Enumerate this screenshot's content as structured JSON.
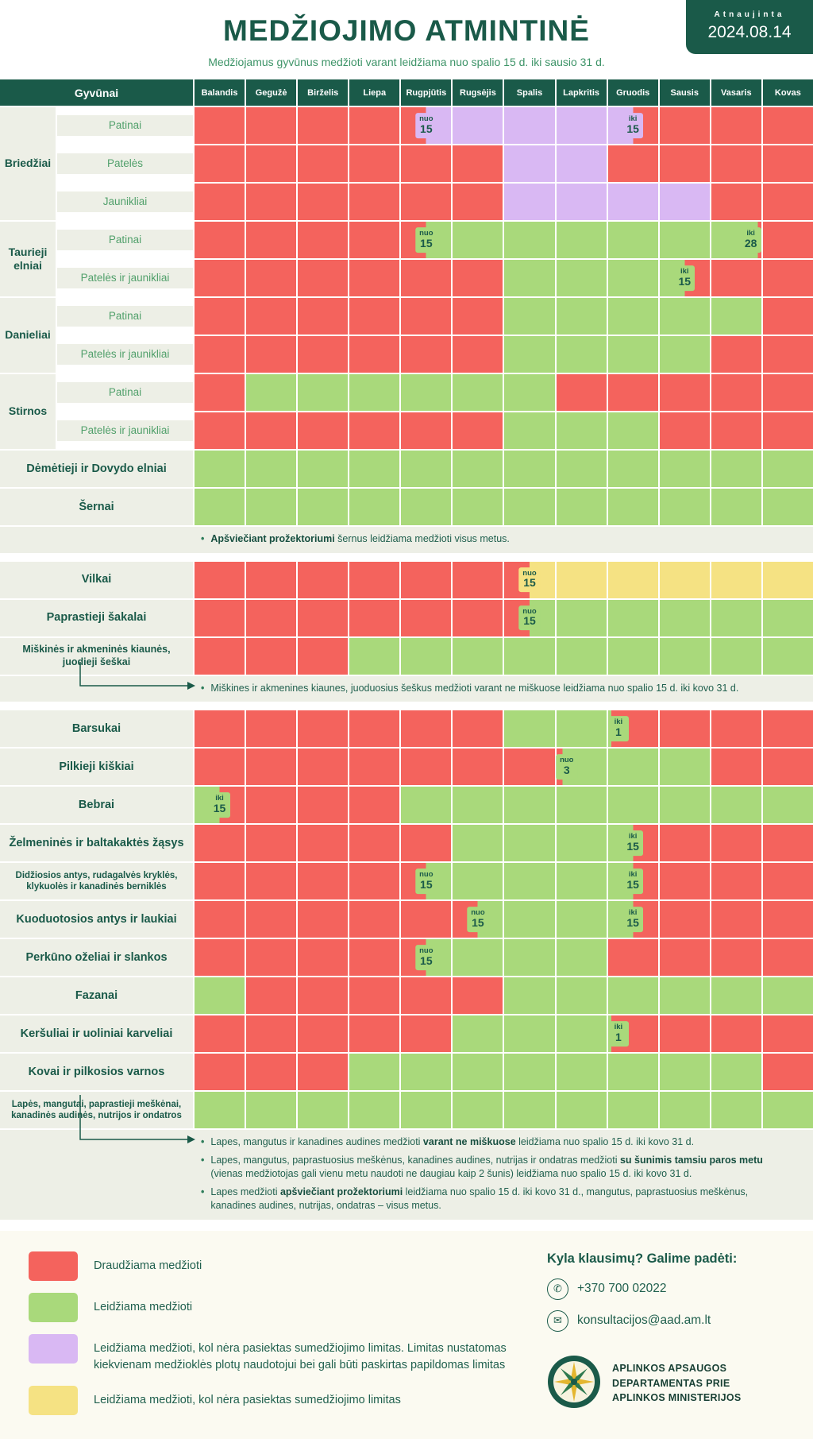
{
  "palette": {
    "R": "#f4635d",
    "G": "#a9d97b",
    "P": "#d9b8f3",
    "Y": "#f5e283",
    "dark_green": "#1a5a49"
  },
  "header": {
    "title": "MEDŽIOJIMO ATMINTINĖ",
    "updated_label": "Atnaujinta",
    "updated_date": "2024.08.14",
    "subtitle": "Medžiojamus gyvūnus medžioti varant leidžiama nuo spalio 15 d. iki sausio 31 d."
  },
  "table": {
    "corner_label": "Gyvūnai",
    "months": [
      "Balandis",
      "Gegužė",
      "Birželis",
      "Liepa",
      "Rugpjūtis",
      "Rugsėjis",
      "Spalis",
      "Lapkritis",
      "Gruodis",
      "Sausis",
      "Vasaris",
      "Kovas"
    ],
    "sections": [
      {
        "blocks": [
          {
            "label": "Briedžiai",
            "rows": [
              {
                "label": "Patinai",
                "cells": [
                  "R",
                  "R",
                  "R",
                  "R",
                  {
                    "a": "R",
                    "b": "P",
                    "t": "nuo",
                    "n": "15",
                    "f": 0.5
                  },
                  "P",
                  "P",
                  "P",
                  {
                    "a": "P",
                    "b": "R",
                    "t": "iki",
                    "n": "15",
                    "f": 0.5
                  },
                  "R",
                  "R",
                  "R"
                ]
              },
              {
                "label": "Patelės",
                "cells": [
                  "R",
                  "R",
                  "R",
                  "R",
                  "R",
                  "R",
                  "P",
                  "P",
                  "R",
                  "R",
                  "R",
                  "R"
                ]
              },
              {
                "label": "Jaunikliai",
                "cells": [
                  "R",
                  "R",
                  "R",
                  "R",
                  "R",
                  "R",
                  "P",
                  "P",
                  "P",
                  "P",
                  "R",
                  "R"
                ]
              }
            ]
          },
          {
            "label": "Taurieji elniai",
            "rows": [
              {
                "label": "Patinai",
                "cells": [
                  "R",
                  "R",
                  "R",
                  "R",
                  {
                    "a": "R",
                    "b": "G",
                    "t": "nuo",
                    "n": "15",
                    "f": 0.5
                  },
                  "G",
                  "G",
                  "G",
                  "G",
                  "G",
                  {
                    "a": "G",
                    "b": "R",
                    "t": "iki",
                    "n": "28",
                    "f": 0.93
                  },
                  "R"
                ]
              },
              {
                "label": "Patelės ir jaunikliai",
                "cells": [
                  "R",
                  "R",
                  "R",
                  "R",
                  "R",
                  "R",
                  "G",
                  "G",
                  "G",
                  {
                    "a": "G",
                    "b": "R",
                    "t": "iki",
                    "n": "15",
                    "f": 0.5
                  },
                  "R",
                  "R"
                ]
              }
            ]
          },
          {
            "label": "Danieliai",
            "rows": [
              {
                "label": "Patinai",
                "cells": [
                  "R",
                  "R",
                  "R",
                  "R",
                  "R",
                  "R",
                  "G",
                  "G",
                  "G",
                  "G",
                  "G",
                  "R"
                ]
              },
              {
                "label": "Patelės ir jaunikliai",
                "cells": [
                  "R",
                  "R",
                  "R",
                  "R",
                  "R",
                  "R",
                  "G",
                  "G",
                  "G",
                  "G",
                  "R",
                  "R"
                ]
              }
            ]
          },
          {
            "label": "Stirnos",
            "rows": [
              {
                "label": "Patinai",
                "cells": [
                  "R",
                  "G",
                  "G",
                  "G",
                  "G",
                  "G",
                  "G",
                  "R",
                  "R",
                  "R",
                  "R",
                  "R"
                ]
              },
              {
                "label": "Patelės ir jaunikliai",
                "cells": [
                  "R",
                  "R",
                  "R",
                  "R",
                  "R",
                  "R",
                  "G",
                  "G",
                  "G",
                  "R",
                  "R",
                  "R"
                ]
              }
            ]
          },
          {
            "rows": [
              {
                "label": "Dėmėtieji ir Dovydo elniai",
                "cells": [
                  "G",
                  "G",
                  "G",
                  "G",
                  "G",
                  "G",
                  "G",
                  "G",
                  "G",
                  "G",
                  "G",
                  "G"
                ]
              }
            ]
          },
          {
            "rows": [
              {
                "label": "Šernai",
                "cells": [
                  "G",
                  "G",
                  "G",
                  "G",
                  "G",
                  "G",
                  "G",
                  "G",
                  "G",
                  "G",
                  "G",
                  "G"
                ]
              }
            ],
            "notes": [
              "**Apšviečiant prožektoriumi** šernus leidžiama medžioti visus metus."
            ]
          }
        ]
      },
      {
        "blocks": [
          {
            "rows": [
              {
                "label": "Vilkai",
                "cells": [
                  "R",
                  "R",
                  "R",
                  "R",
                  "R",
                  "R",
                  {
                    "a": "R",
                    "b": "Y",
                    "t": "nuo",
                    "n": "15",
                    "f": 0.5
                  },
                  "Y",
                  "Y",
                  "Y",
                  "Y",
                  "Y"
                ]
              }
            ]
          },
          {
            "rows": [
              {
                "label": "Paprastieji šakalai",
                "cells": [
                  "R",
                  "R",
                  "R",
                  "R",
                  "R",
                  "R",
                  {
                    "a": "R",
                    "b": "G",
                    "t": "nuo",
                    "n": "15",
                    "f": 0.5
                  },
                  "G",
                  "G",
                  "G",
                  "G",
                  "G"
                ]
              }
            ]
          },
          {
            "rows": [
              {
                "label": "Miškinės ir akmeninės kiaunės, juodieji šeškai",
                "cells": [
                  "R",
                  "R",
                  "R",
                  "G",
                  "G",
                  "G",
                  "G",
                  "G",
                  "G",
                  "G",
                  "G",
                  "G"
                ]
              }
            ],
            "notes": [
              "Miškines ir akmenines kiaunes, juoduosius šeškus medžioti varant ne miškuose leidžiama nuo spalio 15 d. iki kovo 31 d."
            ],
            "arrow": "short"
          }
        ]
      },
      {
        "blocks": [
          {
            "rows": [
              {
                "label": "Barsukai",
                "cells": [
                  "R",
                  "R",
                  "R",
                  "R",
                  "R",
                  "R",
                  "G",
                  "G",
                  {
                    "a": "G",
                    "b": "R",
                    "t": "iki",
                    "n": "1",
                    "f": 0.06
                  },
                  "R",
                  "R",
                  "R"
                ]
              }
            ]
          },
          {
            "rows": [
              {
                "label": "Pilkieji kiškiai",
                "cells": [
                  "R",
                  "R",
                  "R",
                  "R",
                  "R",
                  "R",
                  "R",
                  {
                    "a": "R",
                    "b": "G",
                    "t": "nuo",
                    "n": "3",
                    "f": 0.12
                  },
                  "G",
                  "G",
                  "R",
                  "R"
                ]
              }
            ]
          },
          {
            "rows": [
              {
                "label": "Bebrai",
                "cells": [
                  {
                    "a": "G",
                    "b": "R",
                    "t": "iki",
                    "n": "15",
                    "f": 0.5
                  },
                  "R",
                  "R",
                  "R",
                  "G",
                  "G",
                  "G",
                  "G",
                  "G",
                  "G",
                  "G",
                  "G"
                ]
              }
            ]
          },
          {
            "rows": [
              {
                "label": "Želmeninės ir baltakaktės žąsys",
                "cells": [
                  "R",
                  "R",
                  "R",
                  "R",
                  "R",
                  "G",
                  "G",
                  "G",
                  {
                    "a": "G",
                    "b": "R",
                    "t": "iki",
                    "n": "15",
                    "f": 0.5
                  },
                  "R",
                  "R",
                  "R"
                ]
              }
            ]
          },
          {
            "rows": [
              {
                "label": "Didžiosios antys, rudagalvės kryklės, klykuolės ir kanadinės berniklės",
                "cells": [
                  "R",
                  "R",
                  "R",
                  "R",
                  {
                    "a": "R",
                    "b": "G",
                    "t": "nuo",
                    "n": "15",
                    "f": 0.5
                  },
                  "G",
                  "G",
                  "G",
                  {
                    "a": "G",
                    "b": "R",
                    "t": "iki",
                    "n": "15",
                    "f": 0.5
                  },
                  "R",
                  "R",
                  "R"
                ]
              }
            ]
          },
          {
            "rows": [
              {
                "label": "Kuoduotosios antys ir laukiai",
                "cells": [
                  "R",
                  "R",
                  "R",
                  "R",
                  "R",
                  {
                    "a": "R",
                    "b": "G",
                    "t": "nuo",
                    "n": "15",
                    "f": 0.5
                  },
                  "G",
                  "G",
                  {
                    "a": "G",
                    "b": "R",
                    "t": "iki",
                    "n": "15",
                    "f": 0.5
                  },
                  "R",
                  "R",
                  "R"
                ]
              }
            ]
          },
          {
            "rows": [
              {
                "label": "Perkūno oželiai ir slankos",
                "cells": [
                  "R",
                  "R",
                  "R",
                  "R",
                  {
                    "a": "R",
                    "b": "G",
                    "t": "nuo",
                    "n": "15",
                    "f": 0.5
                  },
                  "G",
                  "G",
                  "G",
                  "R",
                  "R",
                  "R",
                  "R"
                ]
              }
            ]
          },
          {
            "rows": [
              {
                "label": "Fazanai",
                "cells": [
                  "G",
                  "R",
                  "R",
                  "R",
                  "R",
                  "R",
                  "G",
                  "G",
                  "G",
                  "G",
                  "G",
                  "G"
                ]
              }
            ]
          },
          {
            "rows": [
              {
                "label": "Keršuliai ir uoliniai karveliai",
                "cells": [
                  "R",
                  "R",
                  "R",
                  "R",
                  "R",
                  "G",
                  "G",
                  "G",
                  {
                    "a": "G",
                    "b": "R",
                    "t": "iki",
                    "n": "1",
                    "f": 0.06
                  },
                  "R",
                  "R",
                  "R"
                ]
              }
            ]
          },
          {
            "rows": [
              {
                "label": "Kovai ir pilkosios varnos",
                "cells": [
                  "R",
                  "R",
                  "R",
                  "G",
                  "G",
                  "G",
                  "G",
                  "G",
                  "G",
                  "G",
                  "G",
                  "R"
                ]
              }
            ]
          },
          {
            "rows": [
              {
                "label": "Lapės, mangutai, paprastieji meškėnai, kanadinės audinės, nutrijos ir ondatros",
                "cells": [
                  "G",
                  "G",
                  "G",
                  "G",
                  "G",
                  "G",
                  "G",
                  "G",
                  "G",
                  "G",
                  "G",
                  "G"
                ]
              }
            ],
            "notes": [
              "Lapes, mangutus ir kanadines audines medžioti **varant ne miškuose** leidžiama nuo spalio 15 d. iki kovo 31 d.",
              "Lapes, mangutus, paprastuosius meškėnus, kanadines audines, nutrijas ir ondatras medžioti **su šunimis tamsiu paros metu** (vienas medžiotojas gali vienu metu naudoti ne daugiau kaip 2 šunis) leidžiama nuo spalio 15 d. iki kovo 31 d.",
              "Lapes medžioti **apšviečiant prožektoriumi** leidžiama nuo spalio 15 d. iki kovo 31 d., mangutus, paprastuosius meškėnus, kanadines audines, nutrijas, ondatras – visus metus."
            ],
            "arrow": "tall"
          }
        ]
      }
    ]
  },
  "legend": {
    "items": [
      {
        "color": "R",
        "text": "Draudžiama medžioti"
      },
      {
        "color": "G",
        "text": "Leidžiama medžioti"
      },
      {
        "color": "P",
        "text": "Leidžiama medžioti, kol nėra pasiektas sumedžiojimo limitas. Limitas nustatomas kiekvienam medžioklės plotų naudotojui bei gali būti paskirtas papildomas limitas"
      },
      {
        "color": "Y",
        "text": "Leidžiama medžioti, kol nėra pasiektas sumedžiojimo limitas"
      }
    ]
  },
  "contact": {
    "heading": "Kyla klausimų? Galime padėti:",
    "phone": "+370 700 02022",
    "email": "konsultacijos@aad.am.lt",
    "org_name": [
      "APLINKOS APSAUGOS",
      "DEPARTAMENTAS PRIE",
      "APLINKOS MINISTERIJOS"
    ]
  }
}
